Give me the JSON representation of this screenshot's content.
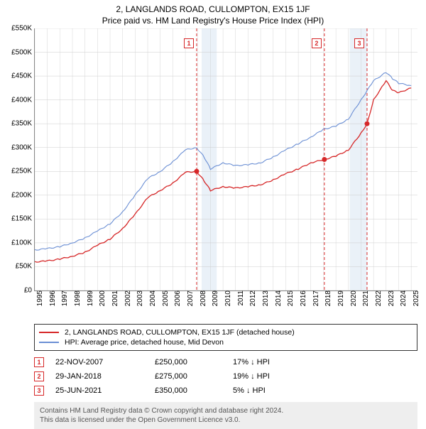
{
  "title": "2, LANGLANDS ROAD, CULLOMPTON, EX15 1JF",
  "subtitle": "Price paid vs. HM Land Registry's House Price Index (HPI)",
  "chart": {
    "type": "line",
    "background_color": "#ffffff",
    "grid_color": "#cccccc",
    "axis_color": "#888888",
    "shaded_band_color": "#eaf1f8",
    "shaded_bands": [
      {
        "x_start": 2008.3,
        "x_end": 2009.5
      },
      {
        "x_start": 2020.1,
        "x_end": 2021.5
      }
    ],
    "x": {
      "min": 1995,
      "max": 2025.5,
      "ticks": [
        1995,
        1996,
        1997,
        1998,
        1999,
        2000,
        2001,
        2002,
        2003,
        2004,
        2005,
        2006,
        2007,
        2008,
        2009,
        2010,
        2011,
        2012,
        2013,
        2014,
        2015,
        2016,
        2017,
        2018,
        2019,
        2020,
        2021,
        2022,
        2023,
        2024,
        2025
      ],
      "tick_labels": [
        "1995",
        "1996",
        "1997",
        "1998",
        "1999",
        "2000",
        "2001",
        "2002",
        "2003",
        "2004",
        "2005",
        "2006",
        "2007",
        "2008",
        "2009",
        "2010",
        "2011",
        "2012",
        "2013",
        "2014",
        "2015",
        "2016",
        "2017",
        "2018",
        "2019",
        "2020",
        "2021",
        "2022",
        "2023",
        "2024",
        "2025"
      ],
      "label_fontsize": 10
    },
    "y": {
      "min": 0,
      "max": 550000,
      "ticks": [
        0,
        50000,
        100000,
        150000,
        200000,
        250000,
        300000,
        350000,
        400000,
        450000,
        500000,
        550000
      ],
      "tick_labels": [
        "£0",
        "£50K",
        "£100K",
        "£150K",
        "£200K",
        "£250K",
        "£300K",
        "£350K",
        "£400K",
        "£450K",
        "£500K",
        "£550K"
      ],
      "label_fontsize": 10
    },
    "series": [
      {
        "name": "2, LANGLANDS ROAD, CULLOMPTON, EX15 1JF (detached house)",
        "color": "#d62728",
        "line_width": 1.3,
        "data": [
          [
            1995,
            60000
          ],
          [
            1996,
            62000
          ],
          [
            1997,
            66000
          ],
          [
            1998,
            72000
          ],
          [
            1999,
            80000
          ],
          [
            2000,
            95000
          ],
          [
            2001,
            108000
          ],
          [
            2002,
            130000
          ],
          [
            2003,
            160000
          ],
          [
            2004,
            195000
          ],
          [
            2005,
            210000
          ],
          [
            2006,
            225000
          ],
          [
            2007,
            248000
          ],
          [
            2007.9,
            250000
          ],
          [
            2008.5,
            230000
          ],
          [
            2009,
            210000
          ],
          [
            2010,
            218000
          ],
          [
            2011,
            215000
          ],
          [
            2012,
            218000
          ],
          [
            2013,
            222000
          ],
          [
            2014,
            232000
          ],
          [
            2015,
            245000
          ],
          [
            2016,
            255000
          ],
          [
            2017,
            268000
          ],
          [
            2018.08,
            275000
          ],
          [
            2019,
            282000
          ],
          [
            2020,
            295000
          ],
          [
            2021,
            330000
          ],
          [
            2021.48,
            350000
          ],
          [
            2022,
            400000
          ],
          [
            2023,
            440000
          ],
          [
            2023.5,
            420000
          ],
          [
            2024,
            415000
          ],
          [
            2025,
            425000
          ]
        ]
      },
      {
        "name": "HPI: Average price, detached house, Mid Devon",
        "color": "#6b8fd4",
        "line_width": 1.1,
        "data": [
          [
            1995,
            85000
          ],
          [
            1996,
            88000
          ],
          [
            1997,
            92000
          ],
          [
            1998,
            100000
          ],
          [
            1999,
            110000
          ],
          [
            2000,
            125000
          ],
          [
            2001,
            140000
          ],
          [
            2002,
            165000
          ],
          [
            2003,
            200000
          ],
          [
            2004,
            235000
          ],
          [
            2005,
            250000
          ],
          [
            2006,
            270000
          ],
          [
            2007,
            295000
          ],
          [
            2007.9,
            300000
          ],
          [
            2008.5,
            280000
          ],
          [
            2009,
            255000
          ],
          [
            2010,
            268000
          ],
          [
            2011,
            262000
          ],
          [
            2012,
            264000
          ],
          [
            2013,
            268000
          ],
          [
            2014,
            280000
          ],
          [
            2015,
            295000
          ],
          [
            2016,
            308000
          ],
          [
            2017,
            322000
          ],
          [
            2018,
            338000
          ],
          [
            2019,
            345000
          ],
          [
            2020,
            360000
          ],
          [
            2021,
            400000
          ],
          [
            2022,
            440000
          ],
          [
            2023,
            458000
          ],
          [
            2023.5,
            445000
          ],
          [
            2024,
            435000
          ],
          [
            2025,
            430000
          ]
        ]
      }
    ],
    "event_markers": [
      {
        "n": "1",
        "x": 2007.9,
        "price": 250000,
        "color": "#d62728"
      },
      {
        "n": "2",
        "x": 2018.08,
        "price": 275000,
        "color": "#d62728"
      },
      {
        "n": "3",
        "x": 2021.48,
        "price": 350000,
        "color": "#d62728"
      }
    ]
  },
  "legend": {
    "items": [
      {
        "color": "#d62728",
        "label": "2, LANGLANDS ROAD, CULLOMPTON, EX15 1JF (detached house)"
      },
      {
        "color": "#6b8fd4",
        "label": "HPI: Average price, detached house, Mid Devon"
      }
    ]
  },
  "events_table": [
    {
      "n": "1",
      "color": "#d62728",
      "date": "22-NOV-2007",
      "price": "£250,000",
      "hpi": "17% ↓ HPI"
    },
    {
      "n": "2",
      "color": "#d62728",
      "date": "29-JAN-2018",
      "price": "£275,000",
      "hpi": "19% ↓ HPI"
    },
    {
      "n": "3",
      "color": "#d62728",
      "date": "25-JUN-2021",
      "price": "£350,000",
      "hpi": "5% ↓ HPI"
    }
  ],
  "footer": {
    "line1": "Contains HM Land Registry data © Crown copyright and database right 2024.",
    "line2": "This data is licensed under the Open Government Licence v3.0."
  }
}
